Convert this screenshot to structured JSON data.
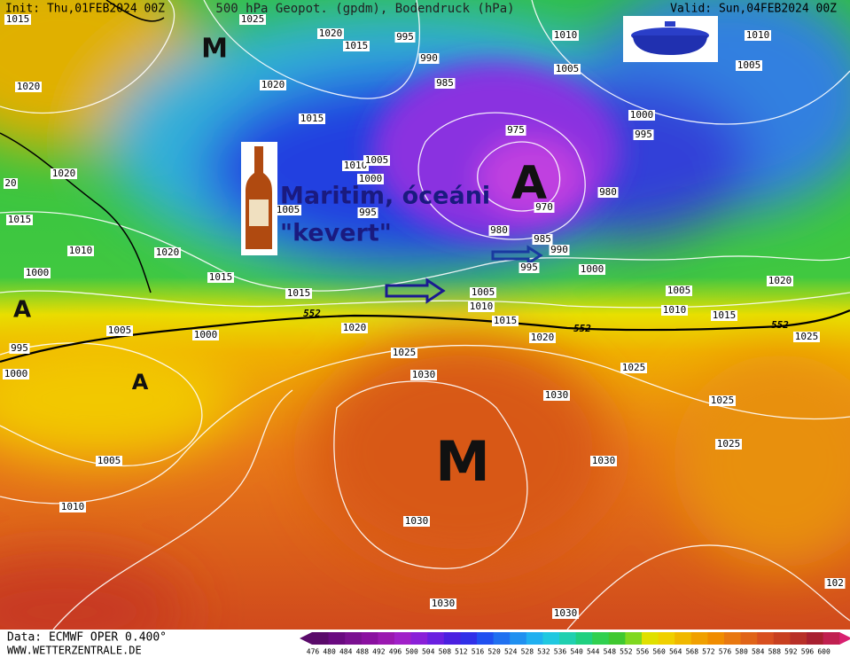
{
  "header": {
    "init": "Init: Thu,01FEB2024 00Z",
    "title": "500 hPa Geopot. (gpdm), Bodendruck (hPa)",
    "valid": "Valid: Sun,04FEB2024 00Z"
  },
  "footer": {
    "data": "Data: ECMWF OPER 0.400°",
    "site": "WWW.WETTERZENTRALE.DE"
  },
  "annotations": {
    "line1": "Maritim, óceáni",
    "line2": "\"kevert\""
  },
  "pressure_centers": [
    "M",
    "A",
    "A",
    "A",
    "M"
  ],
  "isobar_labels": [
    1015,
    1025,
    1020,
    1015,
    995,
    1010,
    1010,
    1020,
    1020,
    990,
    1005,
    1005,
    985,
    1015,
    1000,
    975,
    995,
    1010,
    1005,
    1000,
    1020,
    20,
    980,
    1005,
    995,
    970,
    1015,
    980,
    985,
    990,
    1010,
    1020,
    995,
    1000,
    1000,
    1015,
    1015,
    1005,
    1005,
    1020,
    1010,
    1010,
    1015,
    1015,
    1020,
    1005,
    1000,
    1020,
    1025,
    995,
    1000,
    1025,
    1030,
    1025,
    1030,
    1025,
    1025,
    1005,
    1030,
    1010,
    1030,
    1030,
    1030,
    102
  ],
  "contour_552": [
    552,
    552,
    552
  ],
  "colorbar": [
    476,
    480,
    484,
    488,
    492,
    496,
    500,
    504,
    508,
    512,
    516,
    520,
    524,
    528,
    532,
    536,
    540,
    544,
    548,
    552,
    556,
    560,
    564,
    568,
    572,
    576,
    580,
    584,
    588,
    592,
    596,
    600
  ]
}
